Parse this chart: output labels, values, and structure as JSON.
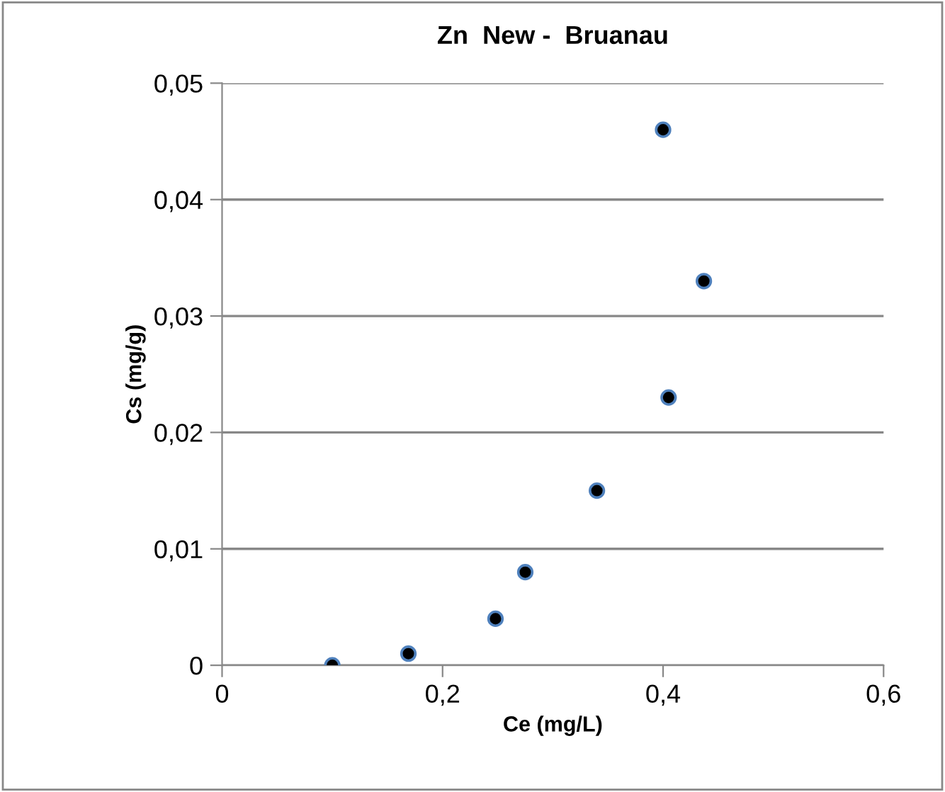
{
  "chart_data": {
    "type": "scatter",
    "title": "Zn  New -  Bruanau",
    "xlabel": "Ce (mg/L)",
    "ylabel": "Cs (mg/g)",
    "x": [
      0.1,
      0.169,
      0.248,
      0.275,
      0.34,
      0.405,
      0.4,
      0.437
    ],
    "values": [
      0,
      0.001,
      0.004,
      0.008,
      0.015,
      0.023,
      0.046,
      0.033
    ],
    "color": "#000000",
    "marker": "circle",
    "xlim": [
      0,
      0.6
    ],
    "xticks": [
      {
        "value": 0,
        "label": "0"
      },
      {
        "value": 0.2,
        "label": "0,2"
      },
      {
        "value": 0.4,
        "label": "0,4"
      },
      {
        "value": 0.6,
        "label": "0,6"
      }
    ],
    "ylim": [
      0,
      0.05
    ],
    "yticks": [
      {
        "value": 0,
        "label": "0"
      },
      {
        "value": 0.01,
        "label": "0,01"
      },
      {
        "value": 0.02,
        "label": "0,02"
      },
      {
        "value": 0.03,
        "label": "0,03"
      },
      {
        "value": 0.04,
        "label": "0,04"
      },
      {
        "value": 0.05,
        "label": "0,05"
      }
    ],
    "grid": "y"
  }
}
